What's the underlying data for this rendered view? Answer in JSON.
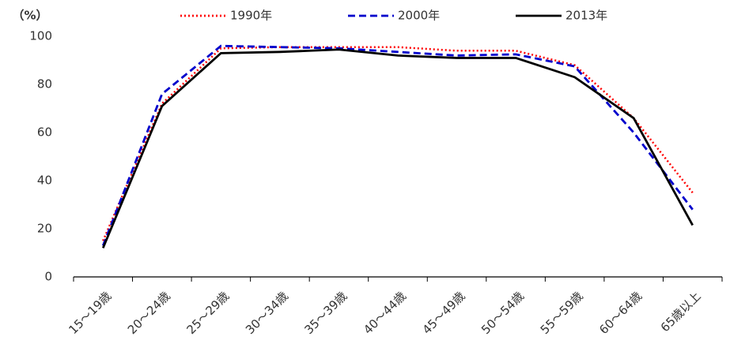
{
  "chart_data": {
    "type": "line",
    "y_label": "（%）",
    "categories": [
      "15～19歳",
      "20～24歳",
      "25～29歳",
      "30～34歳",
      "35～39歳",
      "40～44歳",
      "45～49歳",
      "50～54歳",
      "55～59歳",
      "60～64歳",
      "65歳以上"
    ],
    "series": [
      {
        "name": "1990年",
        "color": "#ff0000",
        "dash": "dotted",
        "values": [
          15,
          72,
          95,
          95.5,
          95.5,
          95.5,
          94,
          94,
          88,
          66,
          35
        ]
      },
      {
        "name": "2000年",
        "color": "#0000cc",
        "dash": "dashed",
        "values": [
          13,
          76,
          96,
          95.5,
          95,
          93.5,
          92,
          92.5,
          87.5,
          60,
          28
        ]
      },
      {
        "name": "2013年",
        "color": "#000000",
        "dash": "solid",
        "values": [
          12,
          71,
          93,
          93.5,
          94.5,
          92,
          91,
          91,
          83,
          66,
          21.5
        ]
      }
    ],
    "ylim": [
      0,
      100
    ],
    "yticks": [
      0,
      20,
      40,
      60,
      80,
      100
    ],
    "grid": false
  }
}
